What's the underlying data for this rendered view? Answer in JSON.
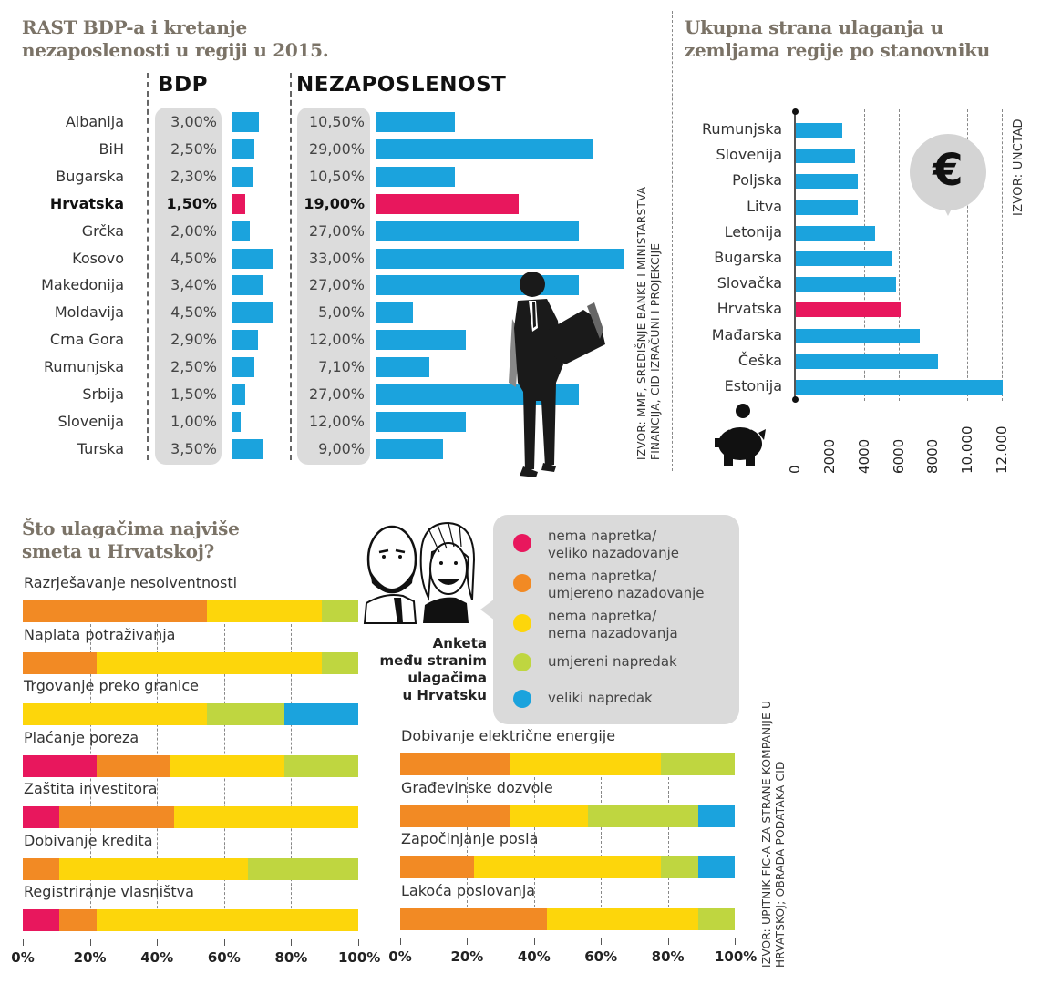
{
  "colors": {
    "bar_blue": "#1ba3dd",
    "highlight": "#e8175d",
    "red": "#e8175d",
    "orange": "#f28a24",
    "yellow": "#fdd60b",
    "green": "#bfd640",
    "blue": "#1ba3dd",
    "title_gray": "#7b7367"
  },
  "chart_data": [
    {
      "type": "bar",
      "title": "RAST BDP-a i kretanje nezaposlenosti u regiji u 2015.",
      "orientation": "horizontal",
      "categories": [
        "Albanija",
        "BiH",
        "Bugarska",
        "Hrvatska",
        "Grčka",
        "Kosovo",
        "Makedonija",
        "Moldavija",
        "Crna Gora",
        "Rumunjska",
        "Srbija",
        "Slovenija",
        "Turska"
      ],
      "highlight": "Hrvatska",
      "series": [
        {
          "name": "BDP",
          "values": [
            3.0,
            2.5,
            2.3,
            1.5,
            2.0,
            4.5,
            3.4,
            4.5,
            2.9,
            2.5,
            1.5,
            1.0,
            3.5
          ],
          "labels": [
            "3,00%",
            "2,50%",
            "2,30%",
            "1,50%",
            "2,00%",
            "4,50%",
            "3,40%",
            "4,50%",
            "2,90%",
            "2,50%",
            "1,50%",
            "1,00%",
            "3,50%"
          ]
        },
        {
          "name": "NEZAPOSLENOST",
          "values": [
            10.5,
            29.0,
            10.5,
            19.0,
            27.0,
            33.0,
            27.0,
            5.0,
            12.0,
            7.1,
            27.0,
            12.0,
            9.0
          ],
          "labels": [
            "10,50%",
            "29,00%",
            "10,50%",
            "19,00%",
            "27,00%",
            "33,00%",
            "27,00%",
            "5,00%",
            "12,00%",
            "7,10%",
            "27,00%",
            "12,00%",
            "9,00%"
          ]
        }
      ],
      "source": [
        "IZVOR: MMF, SREDIŠNJE BANKE I MINISTARSTVA",
        "FINANCIJA, CID IZRAČUNI I PROJEKCIJE"
      ]
    },
    {
      "type": "bar",
      "title": "Ukupna strana ulaganja u zemljama regije po stanovniku",
      "orientation": "horizontal",
      "categories": [
        "Rumunjska",
        "Slovenija",
        "Poljska",
        "Litva",
        "Letonija",
        "Bugarska",
        "Slovačka",
        "Hrvatska",
        "Mađarska",
        "Češka",
        "Estonija"
      ],
      "values": [
        2700,
        3450,
        3600,
        3600,
        4600,
        5550,
        5800,
        6100,
        7200,
        8250,
        12000
      ],
      "highlight": "Hrvatska",
      "xlim": [
        0,
        12000
      ],
      "xticks": [
        "0",
        "2000",
        "4000",
        "6000",
        "8000",
        "10.000",
        "12.000"
      ],
      "xtick_values": [
        0,
        2000,
        4000,
        6000,
        8000,
        10000,
        12000
      ],
      "grid": true,
      "source": "IZVOR: UNCTAD",
      "icon": "€"
    },
    {
      "type": "bar",
      "stacked": true,
      "title": "Što ulagačima najviše smeta u Hrvatskoj?",
      "legend": [
        {
          "key": "red",
          "label": [
            "nema napretka/",
            "veliko nazadovanje"
          ]
        },
        {
          "key": "orange",
          "label": [
            "nema napretka/",
            "umjereno nazadovanje"
          ]
        },
        {
          "key": "yellow",
          "label": [
            "nema napretka/",
            "nema nazadovanja"
          ]
        },
        {
          "key": "green",
          "label": [
            "umjereni napredak"
          ]
        },
        {
          "key": "blue",
          "label": [
            "veliki napredak"
          ]
        }
      ],
      "series_order": [
        "red",
        "orange",
        "yellow",
        "green",
        "blue"
      ],
      "xlim": [
        0,
        100
      ],
      "xticks": [
        "0%",
        "20%",
        "40%",
        "60%",
        "80%",
        "100%"
      ],
      "groups": [
        {
          "rows": [
            {
              "label": "Razrješavanje nesolventnosti",
              "values": [
                0,
                55,
                34,
                11,
                0
              ]
            },
            {
              "label": "Naplata potraživanja",
              "values": [
                0,
                22,
                67,
                11,
                0
              ]
            },
            {
              "label": "Trgovanje preko granice",
              "values": [
                0,
                0,
                55,
                23,
                22
              ]
            },
            {
              "label": "Plaćanje poreza",
              "values": [
                22,
                22,
                34,
                22,
                0
              ]
            },
            {
              "label": "Zaštita investitora",
              "values": [
                11,
                34,
                55,
                0,
                0
              ]
            },
            {
              "label": "Dobivanje kredita",
              "values": [
                0,
                11,
                56,
                33,
                0
              ]
            },
            {
              "label": "Registriranje vlasništva",
              "values": [
                11,
                11,
                78,
                0,
                0
              ]
            }
          ]
        },
        {
          "rows": [
            {
              "label": "Dobivanje električne energije",
              "values": [
                0,
                33,
                45,
                22,
                0
              ]
            },
            {
              "label": "Građevinske dozvole",
              "values": [
                0,
                33,
                23,
                33,
                11
              ]
            },
            {
              "label": "Započinjanje posla",
              "values": [
                0,
                22,
                56,
                11,
                11
              ]
            },
            {
              "label": "Lakoća poslovanja",
              "values": [
                0,
                44,
                45,
                11,
                0
              ]
            }
          ]
        }
      ],
      "caption": [
        "Anketa",
        "među stranim",
        "ulagačima",
        "u Hrvatsku"
      ],
      "source": [
        "IZVOR: UPITNIK FIC-A ZA STRANE KOMPANIJE U",
        "HRVATSKOJ; OBRADA PODATAKA CID"
      ]
    }
  ],
  "headers": {
    "chart1_title_line1": "RAST BDP-a i kretanje",
    "chart1_title_line2": "nezaposlenosti u regiji u 2015.",
    "bdp": "BDP",
    "nezaposlenost": "NEZAPOSLENOST",
    "chart2_title_line1": "Ukupna strana ulaganja u",
    "chart2_title_line2": "zemljama regije po stanovniku",
    "chart3_title_line1": "Što ulagačima najviše",
    "chart3_title_line2": "smeta u Hrvatskoj?"
  }
}
